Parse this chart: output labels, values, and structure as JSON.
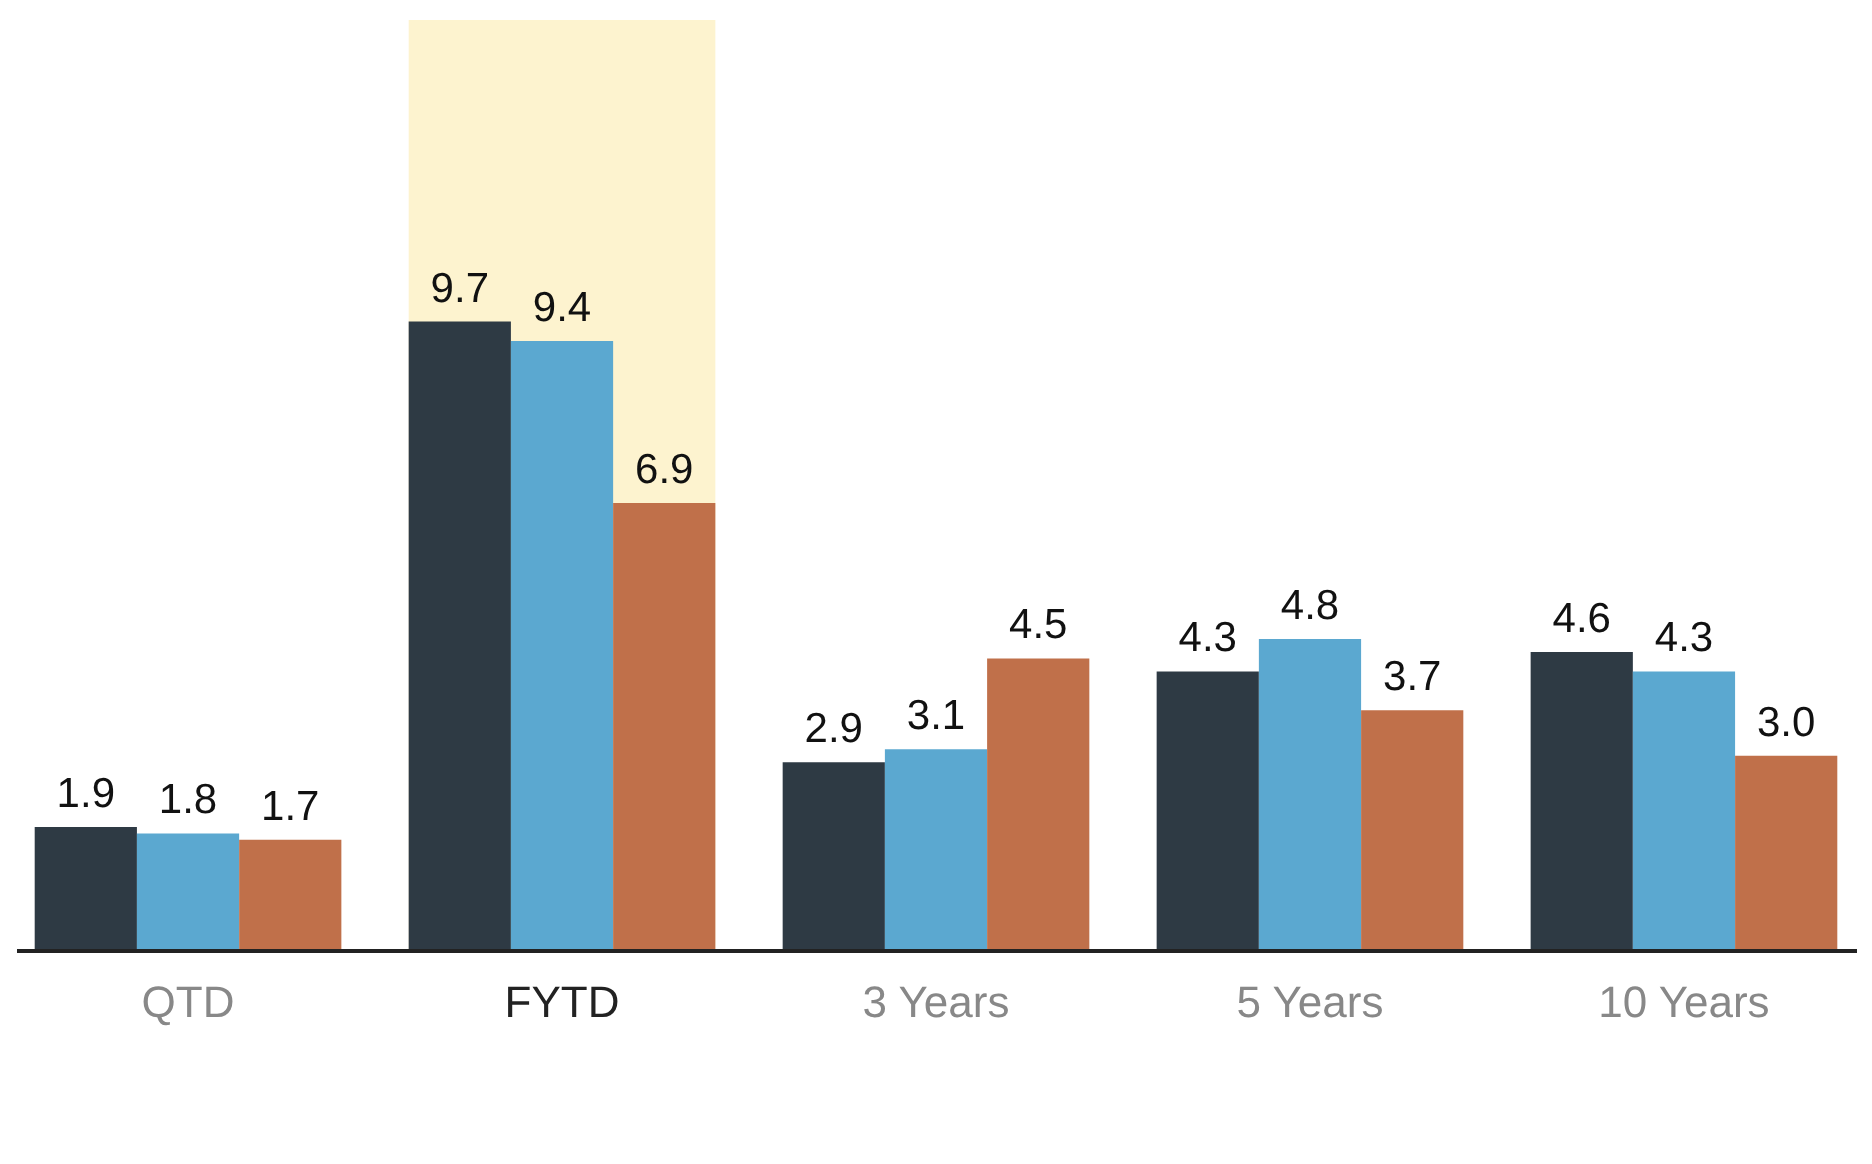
{
  "chart_data": {
    "type": "bar",
    "categories": [
      "QTD",
      "FYTD",
      "3 Years",
      "5 Years",
      "10 Years"
    ],
    "series": [
      {
        "color": "#2e3a44",
        "values": [
          1.9,
          9.7,
          2.9,
          4.3,
          4.6
        ],
        "value_labels": [
          "1.9",
          "9.7",
          "2.9",
          "4.3",
          "4.6"
        ]
      },
      {
        "color": "#5ba8d0",
        "values": [
          1.8,
          9.4,
          3.1,
          4.8,
          4.3
        ],
        "value_labels": [
          "1.8",
          "9.4",
          "3.1",
          "4.8",
          "4.3"
        ]
      },
      {
        "color": "#c0704a",
        "values": [
          1.7,
          6.9,
          4.5,
          3.7,
          3.0
        ],
        "value_labels": [
          "1.7",
          "6.9",
          "4.5",
          "3.7",
          "3.0"
        ]
      }
    ],
    "bands": [
      {
        "axis": "x",
        "from": "FYTD",
        "to": "FYTD",
        "color": "#fdf3cf"
      }
    ],
    "grid": false,
    "tick_labels": "x"
  }
}
